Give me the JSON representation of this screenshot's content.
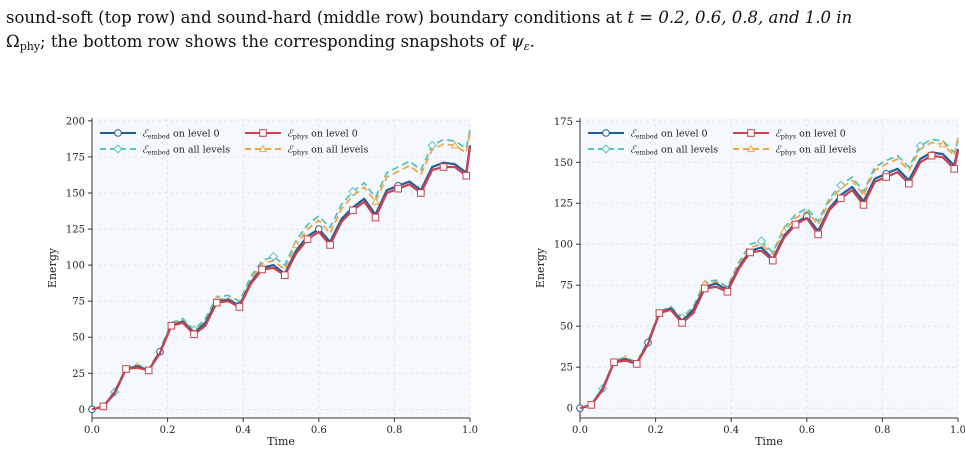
{
  "caption": {
    "line1_a": "sound-soft (top row) and sound-hard (middle row) boundary conditions at ",
    "line1_math": "t = 0.2, 0.6, 0.8, and 1.0 in",
    "line2_math": "Ω",
    "line2_sub": "phy",
    "line2_rest": "; the bottom row shows the corresponding snapshots of ",
    "line2_psi": "ψ",
    "line2_psi_sub": "ε",
    "line2_end": "."
  },
  "colors": {
    "embed_l0": "#1f5f99",
    "embed_all": "#56c3c1",
    "phys_l0": "#c8424f",
    "phys_all": "#f0a646",
    "plot_bg": "#f5f8fc",
    "grid": "#dde3ea"
  },
  "legend": [
    {
      "math": "ℰ",
      "sub": "embed",
      "suffix": " on level 0",
      "color_key": "embed_l0",
      "marker": "circle",
      "dash": "solid"
    },
    {
      "math": "ℰ",
      "sub": "phys",
      "suffix": " on level 0",
      "color_key": "phys_l0",
      "marker": "square",
      "dash": "solid"
    },
    {
      "math": "ℰ",
      "sub": "embed",
      "suffix": " on all levels",
      "color_key": "embed_all",
      "marker": "diamond",
      "dash": "dashed"
    },
    {
      "math": "ℰ",
      "sub": "phys",
      "suffix": " on all levels",
      "color_key": "phys_all",
      "marker": "triangle",
      "dash": "dashed"
    }
  ],
  "chart_data": [
    {
      "type": "line",
      "xlabel": "Time",
      "ylabel": "Energy",
      "xlim": [
        0.0,
        1.0
      ],
      "ylim": [
        -6,
        202
      ],
      "xticks": [
        "0.0",
        "0.2",
        "0.4",
        "0.6",
        "0.8",
        "1.0"
      ],
      "yticks": [
        0,
        25,
        50,
        75,
        100,
        125,
        150,
        175,
        200
      ],
      "grid": true,
      "legend_position": "top-left",
      "series": [
        {
          "name": "ℰembed on level 0",
          "x": [
            0,
            0.03,
            0.06,
            0.09,
            0.12,
            0.15,
            0.18,
            0.21,
            0.24,
            0.27,
            0.3,
            0.33,
            0.36,
            0.39,
            0.42,
            0.45,
            0.48,
            0.51,
            0.54,
            0.57,
            0.6,
            0.63,
            0.66,
            0.69,
            0.72,
            0.75,
            0.78,
            0.81,
            0.84,
            0.87,
            0.9,
            0.93,
            0.96,
            0.99,
            1.0
          ],
          "y": [
            0,
            2,
            12,
            28,
            30,
            27,
            40,
            58,
            61,
            53,
            60,
            75,
            76,
            72,
            88,
            98,
            100,
            94,
            110,
            120,
            125,
            116,
            132,
            140,
            146,
            135,
            152,
            155,
            158,
            152,
            168,
            171,
            170,
            164,
            183
          ]
        },
        {
          "name": "ℰembed on all levels",
          "x": [
            0,
            0.03,
            0.06,
            0.09,
            0.12,
            0.15,
            0.18,
            0.21,
            0.24,
            0.27,
            0.3,
            0.33,
            0.36,
            0.39,
            0.42,
            0.45,
            0.48,
            0.51,
            0.54,
            0.57,
            0.6,
            0.63,
            0.66,
            0.69,
            0.72,
            0.75,
            0.78,
            0.81,
            0.84,
            0.87,
            0.9,
            0.93,
            0.96,
            0.99,
            1.0
          ],
          "y": [
            0,
            2,
            12,
            29,
            31,
            28,
            41,
            60,
            63,
            55,
            63,
            78,
            79,
            75,
            92,
            103,
            106,
            100,
            117,
            128,
            134,
            126,
            142,
            151,
            157,
            147,
            164,
            168,
            172,
            166,
            183,
            187,
            186,
            181,
            194
          ]
        },
        {
          "name": "ℰphys on level 0",
          "x": [
            0,
            0.03,
            0.06,
            0.09,
            0.12,
            0.15,
            0.18,
            0.21,
            0.24,
            0.27,
            0.3,
            0.33,
            0.36,
            0.39,
            0.42,
            0.45,
            0.48,
            0.51,
            0.54,
            0.57,
            0.6,
            0.63,
            0.66,
            0.69,
            0.72,
            0.75,
            0.78,
            0.81,
            0.84,
            0.87,
            0.9,
            0.93,
            0.96,
            0.99,
            1.0
          ],
          "y": [
            0,
            2,
            11,
            28,
            29,
            27,
            39,
            58,
            60,
            52,
            58,
            74,
            75,
            71,
            87,
            97,
            98,
            93,
            108,
            118,
            123,
            114,
            130,
            138,
            144,
            133,
            150,
            153,
            156,
            150,
            166,
            168,
            168,
            162,
            182
          ]
        },
        {
          "name": "ℰphys on all levels",
          "x": [
            0,
            0.03,
            0.06,
            0.09,
            0.12,
            0.15,
            0.18,
            0.21,
            0.24,
            0.27,
            0.3,
            0.33,
            0.36,
            0.39,
            0.42,
            0.45,
            0.48,
            0.51,
            0.54,
            0.57,
            0.6,
            0.63,
            0.66,
            0.69,
            0.72,
            0.75,
            0.78,
            0.81,
            0.84,
            0.87,
            0.9,
            0.93,
            0.96,
            0.99,
            1.0
          ],
          "y": [
            0,
            2,
            12,
            29,
            30,
            28,
            40,
            59,
            62,
            54,
            61,
            76,
            77,
            73,
            90,
            101,
            103,
            97,
            114,
            125,
            131,
            122,
            139,
            148,
            154,
            144,
            161,
            165,
            169,
            163,
            180,
            184,
            183,
            178,
            192
          ]
        }
      ]
    },
    {
      "type": "line",
      "xlabel": "Time",
      "ylabel": "Energy",
      "xlim": [
        0.0,
        1.0
      ],
      "ylim": [
        -6,
        177
      ],
      "xticks": [
        "0.0",
        "0.2",
        "0.4",
        "0.6",
        "0.8",
        "1.0"
      ],
      "yticks": [
        0,
        25,
        50,
        75,
        100,
        125,
        150,
        175
      ],
      "grid": true,
      "legend_position": "top-left",
      "series": [
        {
          "name": "ℰembed on level 0",
          "x": [
            0,
            0.03,
            0.06,
            0.09,
            0.12,
            0.15,
            0.18,
            0.21,
            0.24,
            0.27,
            0.3,
            0.33,
            0.36,
            0.39,
            0.42,
            0.45,
            0.48,
            0.51,
            0.54,
            0.57,
            0.6,
            0.63,
            0.66,
            0.69,
            0.72,
            0.75,
            0.78,
            0.81,
            0.84,
            0.87,
            0.9,
            0.93,
            0.96,
            0.99,
            1.0
          ],
          "y": [
            0,
            2,
            12,
            28,
            30,
            27,
            40,
            58,
            61,
            53,
            60,
            74,
            76,
            72,
            86,
            96,
            98,
            91,
            105,
            113,
            117,
            108,
            122,
            130,
            135,
            126,
            140,
            143,
            146,
            139,
            152,
            156,
            155,
            148,
            158
          ]
        },
        {
          "name": "ℰembed on all levels",
          "x": [
            0,
            0.03,
            0.06,
            0.09,
            0.12,
            0.15,
            0.18,
            0.21,
            0.24,
            0.27,
            0.3,
            0.33,
            0.36,
            0.39,
            0.42,
            0.45,
            0.48,
            0.51,
            0.54,
            0.57,
            0.6,
            0.63,
            0.66,
            0.69,
            0.72,
            0.75,
            0.78,
            0.81,
            0.84,
            0.87,
            0.9,
            0.93,
            0.96,
            0.99,
            1.0
          ],
          "y": [
            0,
            2,
            12,
            29,
            31,
            28,
            41,
            59,
            62,
            55,
            62,
            77,
            78,
            74,
            89,
            100,
            102,
            95,
            110,
            118,
            122,
            114,
            128,
            136,
            141,
            132,
            147,
            151,
            154,
            147,
            160,
            164,
            163,
            156,
            163
          ]
        },
        {
          "name": "ℰphys on level 0",
          "x": [
            0,
            0.03,
            0.06,
            0.09,
            0.12,
            0.15,
            0.18,
            0.21,
            0.24,
            0.27,
            0.3,
            0.33,
            0.36,
            0.39,
            0.42,
            0.45,
            0.48,
            0.51,
            0.54,
            0.57,
            0.6,
            0.63,
            0.66,
            0.69,
            0.72,
            0.75,
            0.78,
            0.81,
            0.84,
            0.87,
            0.9,
            0.93,
            0.96,
            0.99,
            1.0
          ],
          "y": [
            0,
            2,
            11,
            28,
            29,
            27,
            39,
            58,
            60,
            52,
            58,
            73,
            74,
            71,
            85,
            95,
            96,
            90,
            104,
            112,
            116,
            106,
            121,
            128,
            133,
            124,
            138,
            141,
            144,
            137,
            150,
            154,
            153,
            146,
            157
          ]
        },
        {
          "name": "ℰphys on all levels",
          "x": [
            0,
            0.03,
            0.06,
            0.09,
            0.12,
            0.15,
            0.18,
            0.21,
            0.24,
            0.27,
            0.3,
            0.33,
            0.36,
            0.39,
            0.42,
            0.45,
            0.48,
            0.51,
            0.54,
            0.57,
            0.6,
            0.63,
            0.66,
            0.69,
            0.72,
            0.75,
            0.78,
            0.81,
            0.84,
            0.87,
            0.9,
            0.93,
            0.96,
            0.99,
            1.0
          ],
          "y": [
            0,
            2,
            12,
            29,
            30,
            28,
            40,
            59,
            61,
            54,
            61,
            76,
            77,
            73,
            88,
            98,
            100,
            94,
            108,
            116,
            120,
            112,
            126,
            134,
            139,
            130,
            145,
            149,
            152,
            145,
            158,
            162,
            161,
            154,
            165
          ]
        }
      ]
    }
  ]
}
